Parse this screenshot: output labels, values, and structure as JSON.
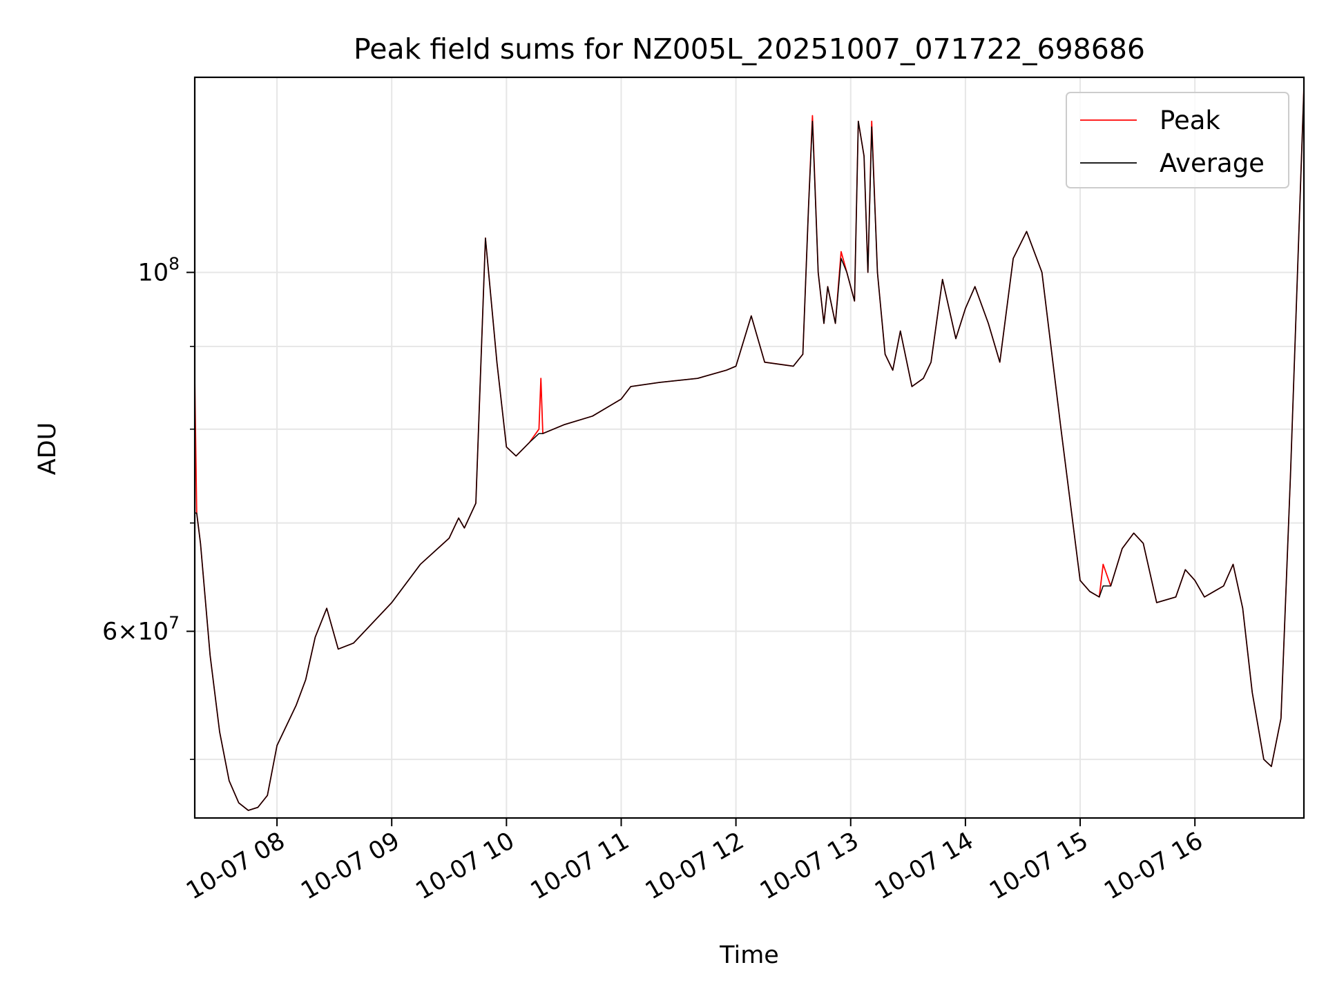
{
  "chart_data": {
    "type": "line",
    "title": "Peak field sums for NZ005L_20251007_071722_698686",
    "xlabel": "Time",
    "ylabel": "ADU",
    "y_scale": "log",
    "grid": true,
    "legend_placement": "top-right",
    "x_range": [
      "2025-10-07 07:17",
      "2025-10-07 16:57"
    ],
    "ylim": [
      46000000,
      132000000
    ],
    "x_ticks": [
      {
        "value": "2025-10-07 08:00",
        "label": "10-07 08"
      },
      {
        "value": "2025-10-07 09:00",
        "label": "10-07 09"
      },
      {
        "value": "2025-10-07 10:00",
        "label": "10-07 10"
      },
      {
        "value": "2025-10-07 11:00",
        "label": "10-07 11"
      },
      {
        "value": "2025-10-07 12:00",
        "label": "10-07 12"
      },
      {
        "value": "2025-10-07 13:00",
        "label": "10-07 13"
      },
      {
        "value": "2025-10-07 14:00",
        "label": "10-07 14"
      },
      {
        "value": "2025-10-07 15:00",
        "label": "10-07 15"
      },
      {
        "value": "2025-10-07 16:00",
        "label": "10-07 16"
      }
    ],
    "y_major_ticks": [
      {
        "value": 60000000,
        "mantissa": "6",
        "exp": "7"
      },
      {
        "value": 100000000,
        "base": "10",
        "exp": "8"
      }
    ],
    "y_minor_ticks": [
      50000000,
      70000000,
      80000000,
      90000000
    ],
    "y_tick_separator": "×",
    "series": [
      {
        "name": "Peak",
        "color": "#ff0000",
        "points": [
          [
            "2025-10-07 07:17",
            86000000
          ],
          [
            "2025-10-07 07:18",
            71000000
          ],
          [
            "2025-10-07 07:20",
            68000000
          ],
          [
            "2025-10-07 07:25",
            58000000
          ],
          [
            "2025-10-07 07:30",
            52000000
          ],
          [
            "2025-10-07 07:35",
            48500000
          ],
          [
            "2025-10-07 07:40",
            47000000
          ],
          [
            "2025-10-07 07:45",
            46500000
          ],
          [
            "2025-10-07 07:50",
            46700000
          ],
          [
            "2025-10-07 07:55",
            47500000
          ],
          [
            "2025-10-07 08:00",
            51000000
          ],
          [
            "2025-10-07 08:10",
            54000000
          ],
          [
            "2025-10-07 08:15",
            56000000
          ],
          [
            "2025-10-07 08:20",
            59500000
          ],
          [
            "2025-10-07 08:26",
            62000000
          ],
          [
            "2025-10-07 08:32",
            58500000
          ],
          [
            "2025-10-07 08:40",
            59000000
          ],
          [
            "2025-10-07 09:00",
            62500000
          ],
          [
            "2025-10-07 09:15",
            66000000
          ],
          [
            "2025-10-07 09:30",
            68500000
          ],
          [
            "2025-10-07 09:35",
            70500000
          ],
          [
            "2025-10-07 09:38",
            69500000
          ],
          [
            "2025-10-07 09:44",
            72000000
          ],
          [
            "2025-10-07 09:49",
            105000000
          ],
          [
            "2025-10-07 09:55",
            88000000
          ],
          [
            "2025-10-07 10:00",
            78000000
          ],
          [
            "2025-10-07 10:05",
            77000000
          ],
          [
            "2025-10-07 10:12",
            78500000
          ],
          [
            "2025-10-07 10:17",
            80000000
          ],
          [
            "2025-10-07 10:18",
            86000000
          ],
          [
            "2025-10-07 10:19",
            79500000
          ],
          [
            "2025-10-07 10:30",
            80500000
          ],
          [
            "2025-10-07 10:45",
            81500000
          ],
          [
            "2025-10-07 11:00",
            83500000
          ],
          [
            "2025-10-07 11:05",
            85000000
          ],
          [
            "2025-10-07 11:20",
            85500000
          ],
          [
            "2025-10-07 11:40",
            86000000
          ],
          [
            "2025-10-07 11:55",
            87000000
          ],
          [
            "2025-10-07 12:00",
            87500000
          ],
          [
            "2025-10-07 12:08",
            94000000
          ],
          [
            "2025-10-07 12:15",
            88000000
          ],
          [
            "2025-10-07 12:30",
            87500000
          ],
          [
            "2025-10-07 12:35",
            89000000
          ],
          [
            "2025-10-07 12:38",
            110000000
          ],
          [
            "2025-10-07 12:40",
            125000000
          ],
          [
            "2025-10-07 12:43",
            100000000
          ],
          [
            "2025-10-07 12:46",
            93000000
          ],
          [
            "2025-10-07 12:48",
            98000000
          ],
          [
            "2025-10-07 12:52",
            93000000
          ],
          [
            "2025-10-07 12:55",
            103000000
          ],
          [
            "2025-10-07 12:58",
            100000000
          ],
          [
            "2025-10-07 13:02",
            96000000
          ],
          [
            "2025-10-07 13:04",
            124000000
          ],
          [
            "2025-10-07 13:07",
            118000000
          ],
          [
            "2025-10-07 13:09",
            100000000
          ],
          [
            "2025-10-07 13:11",
            124000000
          ],
          [
            "2025-10-07 13:14",
            100000000
          ],
          [
            "2025-10-07 13:18",
            89000000
          ],
          [
            "2025-10-07 13:22",
            87000000
          ],
          [
            "2025-10-07 13:26",
            92000000
          ],
          [
            "2025-10-07 13:32",
            85000000
          ],
          [
            "2025-10-07 13:38",
            86000000
          ],
          [
            "2025-10-07 13:42",
            88000000
          ],
          [
            "2025-10-07 13:48",
            99000000
          ],
          [
            "2025-10-07 13:55",
            91000000
          ],
          [
            "2025-10-07 14:00",
            95000000
          ],
          [
            "2025-10-07 14:05",
            98000000
          ],
          [
            "2025-10-07 14:12",
            93000000
          ],
          [
            "2025-10-07 14:18",
            88000000
          ],
          [
            "2025-10-07 14:25",
            102000000
          ],
          [
            "2025-10-07 14:32",
            106000000
          ],
          [
            "2025-10-07 14:40",
            100000000
          ],
          [
            "2025-10-07 14:50",
            80000000
          ],
          [
            "2025-10-07 15:00",
            64500000
          ],
          [
            "2025-10-07 15:05",
            63500000
          ],
          [
            "2025-10-07 15:10",
            63000000
          ],
          [
            "2025-10-07 15:12",
            66000000
          ],
          [
            "2025-10-07 15:16",
            64000000
          ],
          [
            "2025-10-07 15:22",
            67500000
          ],
          [
            "2025-10-07 15:28",
            69000000
          ],
          [
            "2025-10-07 15:33",
            68000000
          ],
          [
            "2025-10-07 15:40",
            62500000
          ],
          [
            "2025-10-07 15:50",
            63000000
          ],
          [
            "2025-10-07 15:55",
            65500000
          ],
          [
            "2025-10-07 16:00",
            64500000
          ],
          [
            "2025-10-07 16:05",
            63000000
          ],
          [
            "2025-10-07 16:10",
            63500000
          ],
          [
            "2025-10-07 16:15",
            64000000
          ],
          [
            "2025-10-07 16:20",
            66000000
          ],
          [
            "2025-10-07 16:25",
            62000000
          ],
          [
            "2025-10-07 16:30",
            55000000
          ],
          [
            "2025-10-07 16:36",
            50000000
          ],
          [
            "2025-10-07 16:40",
            49500000
          ],
          [
            "2025-10-07 16:45",
            53000000
          ],
          [
            "2025-10-07 16:50",
            75000000
          ],
          [
            "2025-10-07 16:57",
            130000000
          ]
        ]
      },
      {
        "name": "Average",
        "color": "#000000",
        "points": [
          [
            "2025-10-07 07:17",
            71000000
          ],
          [
            "2025-10-07 07:18",
            71000000
          ],
          [
            "2025-10-07 07:20",
            68000000
          ],
          [
            "2025-10-07 07:25",
            58000000
          ],
          [
            "2025-10-07 07:30",
            52000000
          ],
          [
            "2025-10-07 07:35",
            48500000
          ],
          [
            "2025-10-07 07:40",
            47000000
          ],
          [
            "2025-10-07 07:45",
            46500000
          ],
          [
            "2025-10-07 07:50",
            46700000
          ],
          [
            "2025-10-07 07:55",
            47500000
          ],
          [
            "2025-10-07 08:00",
            51000000
          ],
          [
            "2025-10-07 08:10",
            54000000
          ],
          [
            "2025-10-07 08:15",
            56000000
          ],
          [
            "2025-10-07 08:20",
            59500000
          ],
          [
            "2025-10-07 08:26",
            62000000
          ],
          [
            "2025-10-07 08:32",
            58500000
          ],
          [
            "2025-10-07 08:40",
            59000000
          ],
          [
            "2025-10-07 09:00",
            62500000
          ],
          [
            "2025-10-07 09:15",
            66000000
          ],
          [
            "2025-10-07 09:30",
            68500000
          ],
          [
            "2025-10-07 09:35",
            70500000
          ],
          [
            "2025-10-07 09:38",
            69500000
          ],
          [
            "2025-10-07 09:44",
            72000000
          ],
          [
            "2025-10-07 09:49",
            105000000
          ],
          [
            "2025-10-07 09:55",
            88000000
          ],
          [
            "2025-10-07 10:00",
            78000000
          ],
          [
            "2025-10-07 10:05",
            77000000
          ],
          [
            "2025-10-07 10:12",
            78500000
          ],
          [
            "2025-10-07 10:17",
            79500000
          ],
          [
            "2025-10-07 10:18",
            79500000
          ],
          [
            "2025-10-07 10:19",
            79500000
          ],
          [
            "2025-10-07 10:30",
            80500000
          ],
          [
            "2025-10-07 10:45",
            81500000
          ],
          [
            "2025-10-07 11:00",
            83500000
          ],
          [
            "2025-10-07 11:05",
            85000000
          ],
          [
            "2025-10-07 11:20",
            85500000
          ],
          [
            "2025-10-07 11:40",
            86000000
          ],
          [
            "2025-10-07 11:55",
            87000000
          ],
          [
            "2025-10-07 12:00",
            87500000
          ],
          [
            "2025-10-07 12:08",
            94000000
          ],
          [
            "2025-10-07 12:15",
            88000000
          ],
          [
            "2025-10-07 12:30",
            87500000
          ],
          [
            "2025-10-07 12:35",
            89000000
          ],
          [
            "2025-10-07 12:38",
            110000000
          ],
          [
            "2025-10-07 12:40",
            124000000
          ],
          [
            "2025-10-07 12:43",
            100000000
          ],
          [
            "2025-10-07 12:46",
            93000000
          ],
          [
            "2025-10-07 12:48",
            98000000
          ],
          [
            "2025-10-07 12:52",
            93000000
          ],
          [
            "2025-10-07 12:55",
            102000000
          ],
          [
            "2025-10-07 12:58",
            100000000
          ],
          [
            "2025-10-07 13:02",
            96000000
          ],
          [
            "2025-10-07 13:04",
            124000000
          ],
          [
            "2025-10-07 13:07",
            118000000
          ],
          [
            "2025-10-07 13:09",
            100000000
          ],
          [
            "2025-10-07 13:11",
            123000000
          ],
          [
            "2025-10-07 13:14",
            100000000
          ],
          [
            "2025-10-07 13:18",
            89000000
          ],
          [
            "2025-10-07 13:22",
            87000000
          ],
          [
            "2025-10-07 13:26",
            92000000
          ],
          [
            "2025-10-07 13:32",
            85000000
          ],
          [
            "2025-10-07 13:38",
            86000000
          ],
          [
            "2025-10-07 13:42",
            88000000
          ],
          [
            "2025-10-07 13:48",
            99000000
          ],
          [
            "2025-10-07 13:55",
            91000000
          ],
          [
            "2025-10-07 14:00",
            95000000
          ],
          [
            "2025-10-07 14:05",
            98000000
          ],
          [
            "2025-10-07 14:12",
            93000000
          ],
          [
            "2025-10-07 14:18",
            88000000
          ],
          [
            "2025-10-07 14:25",
            102000000
          ],
          [
            "2025-10-07 14:32",
            106000000
          ],
          [
            "2025-10-07 14:40",
            100000000
          ],
          [
            "2025-10-07 14:50",
            80000000
          ],
          [
            "2025-10-07 15:00",
            64500000
          ],
          [
            "2025-10-07 15:05",
            63500000
          ],
          [
            "2025-10-07 15:10",
            63000000
          ],
          [
            "2025-10-07 15:12",
            64000000
          ],
          [
            "2025-10-07 15:16",
            64000000
          ],
          [
            "2025-10-07 15:22",
            67500000
          ],
          [
            "2025-10-07 15:28",
            69000000
          ],
          [
            "2025-10-07 15:33",
            68000000
          ],
          [
            "2025-10-07 15:40",
            62500000
          ],
          [
            "2025-10-07 15:50",
            63000000
          ],
          [
            "2025-10-07 15:55",
            65500000
          ],
          [
            "2025-10-07 16:00",
            64500000
          ],
          [
            "2025-10-07 16:05",
            63000000
          ],
          [
            "2025-10-07 16:10",
            63500000
          ],
          [
            "2025-10-07 16:15",
            64000000
          ],
          [
            "2025-10-07 16:20",
            66000000
          ],
          [
            "2025-10-07 16:25",
            62000000
          ],
          [
            "2025-10-07 16:30",
            55000000
          ],
          [
            "2025-10-07 16:36",
            50000000
          ],
          [
            "2025-10-07 16:40",
            49500000
          ],
          [
            "2025-10-07 16:45",
            53000000
          ],
          [
            "2025-10-07 16:50",
            75000000
          ],
          [
            "2025-10-07 16:57",
            130000000
          ]
        ]
      }
    ]
  }
}
